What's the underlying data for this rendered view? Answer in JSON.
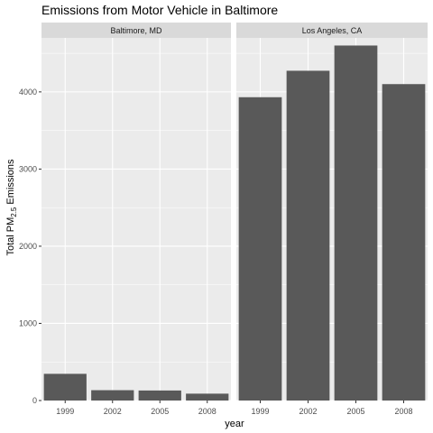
{
  "colors": {
    "panel_bg": "#ebebeb",
    "grid_major": "#ffffff",
    "strip_bg": "#d9d9d9",
    "bar_fill": "#595959",
    "tick_text": "#4d4d4d"
  },
  "chart_data": {
    "type": "bar",
    "title": "Emissions from Motor Vehicle in Baltimore",
    "xlabel": "year",
    "ylabel": {
      "prefix": "Total PM",
      "subscript": "2.5",
      "suffix": " Emissions"
    },
    "ylim": [
      0,
      4700
    ],
    "yticks": [
      0,
      1000,
      2000,
      3000,
      4000
    ],
    "categories": [
      "1999",
      "2002",
      "2005",
      "2008"
    ],
    "facets": [
      {
        "name": "Baltimore, MD",
        "values": [
          346,
          134,
          130,
          89
        ]
      },
      {
        "name": "Los Angeles, CA",
        "values": [
          3931,
          4274,
          4601,
          4101
        ]
      }
    ],
    "grid": true,
    "legend": "none"
  }
}
